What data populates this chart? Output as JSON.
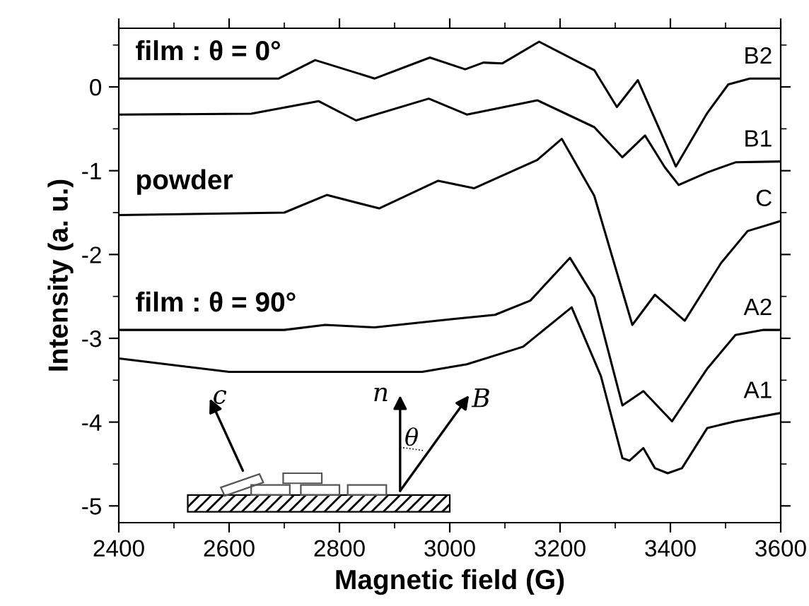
{
  "chart_data": {
    "type": "line",
    "xlabel": "Magnetic field (G)",
    "ylabel": "Intensity (a. u.)",
    "xlim": [
      2400,
      3600
    ],
    "xticks": [
      2400,
      2600,
      2800,
      3000,
      3200,
      3400,
      3600
    ],
    "ylim": [
      -5.2,
      0.7
    ],
    "yticks": [
      -5,
      -4,
      -3,
      -2,
      -1,
      0
    ],
    "grid": false,
    "legend": "right",
    "marker": "none",
    "line_style": "solid",
    "annotations": [
      "film : θ = 0°",
      "powder",
      "film : θ = 90°",
      "c",
      "n",
      "θ",
      "B"
    ],
    "series": [
      {
        "name": "B2",
        "color": "#000000",
        "x": [
          2400,
          2690,
          2756,
          2864,
          2964,
          3028,
          3061,
          3095,
          3162,
          3262,
          3303,
          3341,
          3410,
          3467,
          3505,
          3544,
          3600
        ],
        "values": [
          0.1,
          0.1,
          0.32,
          0.1,
          0.35,
          0.21,
          0.29,
          0.28,
          0.54,
          0.2,
          -0.24,
          0.08,
          -0.95,
          -0.31,
          0.03,
          0.1,
          0.1
        ]
      },
      {
        "name": "B1",
        "color": "#000000",
        "x": [
          2400,
          2640,
          2762,
          2830,
          2962,
          3031,
          3159,
          3262,
          3313,
          3354,
          3390,
          3415,
          3467,
          3518,
          3600
        ],
        "values": [
          -0.33,
          -0.32,
          -0.17,
          -0.4,
          -0.14,
          -0.33,
          -0.16,
          -0.48,
          -0.84,
          -0.58,
          -0.96,
          -1.17,
          -1.02,
          -0.9,
          -0.89
        ]
      },
      {
        "name": "C",
        "color": "#000000",
        "x": [
          2400,
          2700,
          2777,
          2872,
          2979,
          3044,
          3159,
          3203,
          3262,
          3331,
          3372,
          3426,
          3492,
          3540,
          3600
        ],
        "values": [
          -1.53,
          -1.5,
          -1.29,
          -1.45,
          -1.12,
          -1.21,
          -0.87,
          -0.62,
          -1.3,
          -2.84,
          -2.48,
          -2.79,
          -2.1,
          -1.72,
          -1.6
        ]
      },
      {
        "name": "A2",
        "color": "#000000",
        "x": [
          2400,
          2700,
          2774,
          2864,
          3005,
          3082,
          3146,
          3218,
          3262,
          3313,
          3351,
          3403,
          3467,
          3518,
          3569,
          3600
        ],
        "values": [
          -2.9,
          -2.9,
          -2.84,
          -2.87,
          -2.77,
          -2.72,
          -2.55,
          -2.04,
          -2.51,
          -3.8,
          -3.63,
          -3.99,
          -3.36,
          -2.96,
          -2.9,
          -2.9
        ]
      },
      {
        "name": "A1",
        "color": "#000000",
        "x": [
          2400,
          2600,
          2950,
          3031,
          3133,
          3221,
          3274,
          3313,
          3326,
          3351,
          3372,
          3395,
          3421,
          3467,
          3518,
          3600
        ],
        "values": [
          -3.24,
          -3.4,
          -3.4,
          -3.31,
          -3.1,
          -2.63,
          -3.45,
          -4.43,
          -4.46,
          -4.31,
          -4.55,
          -4.61,
          -4.55,
          -4.07,
          -3.99,
          -3.89
        ]
      }
    ]
  }
}
